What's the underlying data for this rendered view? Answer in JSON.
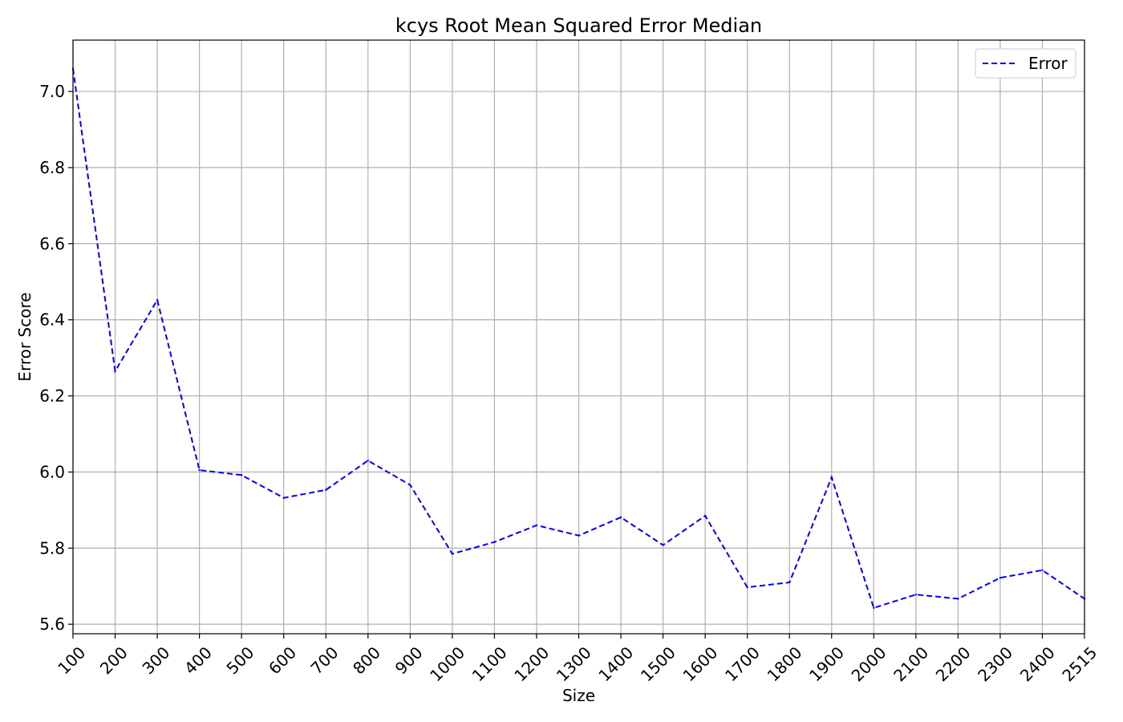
{
  "chart_data": {
    "type": "line",
    "title": "kcys Root Mean Squared Error Median",
    "xlabel": "Size",
    "ylabel": "Error Score",
    "x_ticks": [
      "100",
      "200",
      "300",
      "400",
      "500",
      "600",
      "700",
      "800",
      "900",
      "1000",
      "1100",
      "1200",
      "1300",
      "1400",
      "1500",
      "1600",
      "1700",
      "1800",
      "1900",
      "2000",
      "2100",
      "2200",
      "2300",
      "2400",
      "2515"
    ],
    "y_ticks": [
      "5.6",
      "5.8",
      "6.0",
      "6.2",
      "6.4",
      "6.6",
      "6.8",
      "7.0"
    ],
    "y_tick_values": [
      5.6,
      5.8,
      6.0,
      6.2,
      6.4,
      6.6,
      6.8,
      7.0
    ],
    "ylim": [
      5.575,
      7.135
    ],
    "grid": true,
    "legend_position": "top-right",
    "series": [
      {
        "name": "Error",
        "color": "#0000ff",
        "style": "dashed",
        "values": [
          7.06,
          6.265,
          6.452,
          6.005,
          5.992,
          5.932,
          5.953,
          6.03,
          5.966,
          5.785,
          5.816,
          5.86,
          5.833,
          5.881,
          5.808,
          5.885,
          5.697,
          5.71,
          5.986,
          5.643,
          5.678,
          5.667,
          5.722,
          5.742,
          5.667
        ]
      }
    ]
  }
}
